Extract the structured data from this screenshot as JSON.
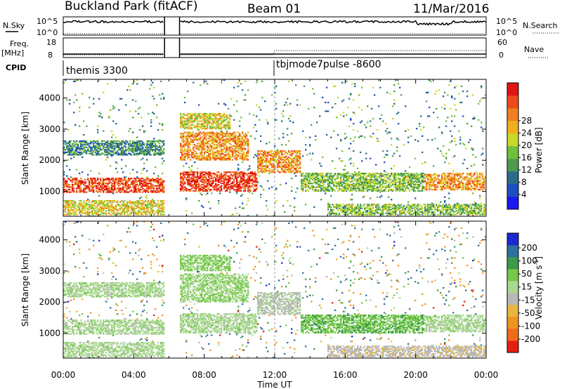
{
  "header": {
    "station": "Buckland Park (fitACF)",
    "beam": "Beam 01",
    "date": "11/Mar/2016"
  },
  "aux_panels": {
    "nsky_label": "N.Sky",
    "nsky_ticks": [
      "10^5",
      "10^0"
    ],
    "nsearch_label": "N.Search",
    "nsearch_ticks": [
      "10^5",
      "10^0"
    ],
    "freq_label": "Freq.",
    "freq_unit": "[MHz]",
    "freq_ticks": [
      "18",
      "8"
    ],
    "nave_label": "Nave",
    "nave_ticks": [
      "60",
      "0"
    ],
    "cpid_label": "CPID",
    "cpid_modes": [
      {
        "name": "themis 3300",
        "start_hour": 0
      },
      {
        "name": "tbjmode7pulse -8600",
        "start_hour": 12
      }
    ]
  },
  "axes": {
    "ylabel": "Slant Range [km]",
    "xlabel": "Time UT",
    "yticks": [
      1000,
      2000,
      3000,
      4000
    ],
    "ylim": [
      200,
      4600
    ],
    "xticks": [
      "00:00",
      "04:00",
      "08:00",
      "12:00",
      "16:00",
      "20:00",
      "00:00"
    ],
    "xlim_hours": [
      0,
      24
    ]
  },
  "colorbars": [
    {
      "title": "Power [dB]",
      "ticks": [
        "4",
        "8",
        "12",
        "16",
        "20",
        "24",
        "28"
      ],
      "colors": [
        "#1a1af0",
        "#1d4fbf",
        "#2c6b8a",
        "#4d9a50",
        "#6fc03a",
        "#c9d82c",
        "#f0b020",
        "#f08020",
        "#ef4a1c",
        "#e01414"
      ]
    },
    {
      "title": "Velocity [m s",
      "title_sup": "-1",
      "title_end": "]",
      "ticks": [
        "200",
        "100",
        "50",
        "15",
        "-15",
        "-50",
        "-100",
        "-200"
      ],
      "colors": [
        "#1a2ad0",
        "#2d6fa0",
        "#3c9a4c",
        "#76c84a",
        "#a9d890",
        "#b8b8b8",
        "#e8b640",
        "#f09420",
        "#f06a1c",
        "#e42010"
      ]
    }
  ],
  "chart_data": {
    "type": "heatmap",
    "panels": [
      "Power",
      "Velocity"
    ],
    "x": "hours UT",
    "y": "slant range km",
    "data_gap_hours": [
      [
        5.75,
        6.6
      ]
    ],
    "echo_regions": [
      {
        "t0": 0.0,
        "t1": 5.75,
        "r0": 950,
        "r1": 1450,
        "power_db": 26,
        "velocity": 0
      },
      {
        "t0": 0.0,
        "t1": 5.75,
        "r0": 2150,
        "r1": 2650,
        "power_db": 10,
        "velocity": 0
      },
      {
        "t0": 0.0,
        "t1": 5.75,
        "r0": 250,
        "r1": 700,
        "power_db": 18,
        "velocity": 0
      },
      {
        "t0": 6.6,
        "t1": 11.0,
        "r0": 1000,
        "r1": 1650,
        "power_db": 27,
        "velocity": 0
      },
      {
        "t0": 6.6,
        "t1": 10.5,
        "r0": 2000,
        "r1": 2900,
        "power_db": 22,
        "velocity": 10
      },
      {
        "t0": 6.6,
        "t1": 9.5,
        "r0": 3000,
        "r1": 3500,
        "power_db": 18,
        "velocity": 20
      },
      {
        "t0": 11.0,
        "t1": 13.5,
        "r0": 1600,
        "r1": 2300,
        "power_db": 22,
        "velocity": -20
      },
      {
        "t0": 13.5,
        "t1": 20.5,
        "r0": 1000,
        "r1": 1600,
        "power_db": 14,
        "velocity": 40
      },
      {
        "t0": 19.5,
        "t1": 24.0,
        "r0": 1050,
        "r1": 1600,
        "power_db": 22,
        "velocity": 0
      },
      {
        "t0": 15.0,
        "t1": 24.0,
        "r0": 250,
        "r1": 600,
        "power_db": 14,
        "velocity": -40
      }
    ]
  }
}
